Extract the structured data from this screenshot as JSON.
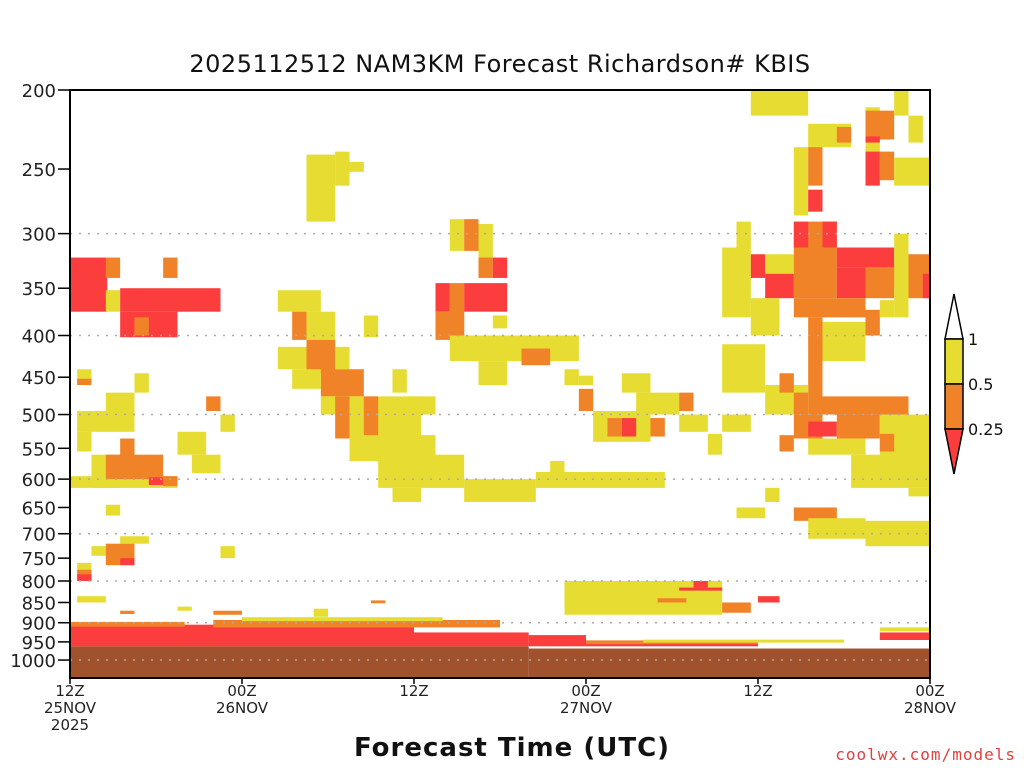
{
  "chart_data": {
    "type": "heatmap",
    "title": "2025112512 NAM3KM Forecast Richardson# KBIS",
    "xlabel": "Forecast Time (UTC)",
    "ylabel": "",
    "credit": "coolwx.com/models",
    "x_unit": "forecast hour",
    "xlim": [
      0,
      60
    ],
    "ylim_hpa": [
      200,
      1052
    ],
    "y_scale": "log",
    "y_ticks": [
      200,
      250,
      300,
      350,
      400,
      450,
      500,
      550,
      600,
      650,
      700,
      750,
      800,
      850,
      900,
      950,
      1000
    ],
    "gridlines_hpa": [
      300,
      400,
      500,
      600,
      700,
      800,
      900,
      1000
    ],
    "x_ticks": [
      {
        "hour": 0,
        "time": "12Z",
        "date": "25NOV",
        "year": "2025"
      },
      {
        "hour": 12,
        "time": "00Z",
        "date": "26NOV"
      },
      {
        "hour": 24,
        "time": "12Z"
      },
      {
        "hour": 36,
        "time": "00Z",
        "date": "27NOV"
      },
      {
        "hour": 48,
        "time": "12Z"
      },
      {
        "hour": 60,
        "time": "00Z",
        "date": "28NOV"
      }
    ],
    "legend": {
      "placement": "right",
      "labels": [
        "1",
        "0.5",
        "0.25"
      ],
      "categories": {
        "y": {
          "range": "0.5-1",
          "color": "#e6dc32"
        },
        "o": {
          "range": "0.25-0.5",
          "color": "#f08228"
        },
        "r": {
          "range": "<0.25",
          "color": "#fc3d3d"
        },
        "g": {
          "range": "below ground",
          "color": "#a0522d"
        }
      }
    },
    "cells": [
      [
        0,
        2.6,
        321,
        374,
        "r"
      ],
      [
        2.5,
        3.5,
        321,
        340,
        "o"
      ],
      [
        6.5,
        7.5,
        321,
        340,
        "o"
      ],
      [
        2.5,
        3.5,
        352,
        374,
        "y"
      ],
      [
        3.5,
        10.5,
        350,
        374,
        "r"
      ],
      [
        3.5,
        7.5,
        374,
        402,
        "r"
      ],
      [
        4.5,
        5.5,
        380,
        400,
        "o"
      ],
      [
        0.5,
        1.5,
        440,
        458,
        "y"
      ],
      [
        0.5,
        1.5,
        452,
        460,
        "o"
      ],
      [
        4.5,
        5.5,
        445,
        470,
        "y"
      ],
      [
        2.5,
        4.5,
        470,
        500,
        "y"
      ],
      [
        0.5,
        4.5,
        495,
        525,
        "y"
      ],
      [
        0.5,
        1.5,
        525,
        555,
        "y"
      ],
      [
        7.5,
        9.5,
        525,
        560,
        "y"
      ],
      [
        8.5,
        10.5,
        560,
        590,
        "y"
      ],
      [
        9.5,
        10.5,
        475,
        495,
        "o"
      ],
      [
        10.5,
        11.5,
        500,
        525,
        "y"
      ],
      [
        0,
        7.5,
        595,
        615,
        "y"
      ],
      [
        1.5,
        3.5,
        560,
        615,
        "y"
      ],
      [
        2.5,
        6.5,
        560,
        600,
        "o"
      ],
      [
        3.5,
        4.5,
        535,
        575,
        "o"
      ],
      [
        5.5,
        6.5,
        597,
        610,
        "r"
      ],
      [
        6.5,
        7.5,
        595,
        612,
        "o"
      ],
      [
        2.5,
        3.5,
        645,
        665,
        "y"
      ],
      [
        3.5,
        5.5,
        705,
        720,
        "y"
      ],
      [
        1.5,
        2.5,
        725,
        745,
        "y"
      ],
      [
        2.5,
        4.5,
        720,
        765,
        "o"
      ],
      [
        3.5,
        4.5,
        750,
        765,
        "r"
      ],
      [
        10.5,
        11.5,
        725,
        750,
        "y"
      ],
      [
        0.5,
        1.5,
        760,
        780,
        "y"
      ],
      [
        0.5,
        1.5,
        775,
        800,
        "o"
      ],
      [
        0.5,
        1.5,
        785,
        800,
        "r"
      ],
      [
        0.5,
        2.5,
        835,
        850,
        "y"
      ],
      [
        3.5,
        4.5,
        870,
        878,
        "o"
      ],
      [
        7.5,
        8.5,
        860,
        870,
        "y"
      ],
      [
        10,
        12,
        870,
        880,
        "o"
      ],
      [
        17,
        18,
        865,
        885,
        "y"
      ],
      [
        21,
        22,
        845,
        852,
        "o"
      ],
      [
        16.5,
        18.5,
        240,
        290,
        "y"
      ],
      [
        18.5,
        19.5,
        238,
        262,
        "y"
      ],
      [
        19.5,
        20.5,
        245,
        252,
        "y"
      ],
      [
        14.5,
        17.5,
        352,
        374,
        "y"
      ],
      [
        15.5,
        16.5,
        374,
        405,
        "o"
      ],
      [
        16.5,
        18.5,
        374,
        405,
        "y"
      ],
      [
        14.5,
        16.5,
        413,
        440,
        "y"
      ],
      [
        16.5,
        18.5,
        405,
        445,
        "o"
      ],
      [
        18.5,
        19.5,
        413,
        440,
        "y"
      ],
      [
        17.5,
        20.5,
        440,
        475,
        "o"
      ],
      [
        15.5,
        17.5,
        440,
        465,
        "y"
      ],
      [
        20.5,
        21.5,
        378,
        402,
        "y"
      ],
      [
        17.5,
        19.5,
        475,
        500,
        "y"
      ],
      [
        18.5,
        19.5,
        475,
        535,
        "o"
      ],
      [
        19.5,
        24.5,
        475,
        555,
        "y"
      ],
      [
        20.5,
        21.5,
        475,
        532,
        "o"
      ],
      [
        23.5,
        25.5,
        475,
        500,
        "y"
      ],
      [
        22.5,
        23.5,
        440,
        470,
        "y"
      ],
      [
        19.5,
        25.5,
        530,
        570,
        "y"
      ],
      [
        21.5,
        27.5,
        560,
        615,
        "y"
      ],
      [
        22.5,
        24.5,
        615,
        640,
        "y"
      ],
      [
        27.5,
        32.5,
        600,
        640,
        "y"
      ],
      [
        26.5,
        27.5,
        288,
        315,
        "y"
      ],
      [
        27.5,
        28.5,
        288,
        315,
        "o"
      ],
      [
        28.5,
        29.5,
        292,
        322,
        "y"
      ],
      [
        28.5,
        29.5,
        321,
        340,
        "o"
      ],
      [
        29.5,
        30.5,
        321,
        340,
        "r"
      ],
      [
        25.5,
        26.5,
        345,
        374,
        "r"
      ],
      [
        26.5,
        27.5,
        345,
        405,
        "o"
      ],
      [
        27.5,
        30.5,
        345,
        374,
        "r"
      ],
      [
        25.5,
        27.5,
        374,
        405,
        "o"
      ],
      [
        29.5,
        30.5,
        378,
        392,
        "y"
      ],
      [
        26.5,
        35.5,
        400,
        430,
        "y"
      ],
      [
        28.5,
        30.5,
        430,
        460,
        "y"
      ],
      [
        31.5,
        33.5,
        415,
        435,
        "o"
      ],
      [
        32.5,
        41.5,
        588,
        615,
        "y"
      ],
      [
        33.5,
        34.5,
        570,
        590,
        "y"
      ],
      [
        34.5,
        35.5,
        440,
        460,
        "y"
      ],
      [
        35.5,
        36.5,
        448,
        460,
        "y"
      ],
      [
        35.5,
        36.5,
        465,
        495,
        "o"
      ],
      [
        36.5,
        40.5,
        495,
        540,
        "y"
      ],
      [
        37.5,
        38.5,
        505,
        532,
        "o"
      ],
      [
        38.5,
        39.5,
        505,
        532,
        "r"
      ],
      [
        40.5,
        41.5,
        505,
        532,
        "o"
      ],
      [
        38.5,
        40.5,
        445,
        470,
        "y"
      ],
      [
        39.5,
        42.5,
        470,
        500,
        "y"
      ],
      [
        42.5,
        43.5,
        470,
        495,
        "o"
      ],
      [
        42.5,
        44.5,
        500,
        525,
        "y"
      ],
      [
        44.5,
        45.5,
        528,
        560,
        "y"
      ],
      [
        45.5,
        47.5,
        500,
        525,
        "y"
      ],
      [
        34.5,
        45.5,
        800,
        880,
        "y"
      ],
      [
        43.5,
        44.5,
        800,
        815,
        "r"
      ],
      [
        42.5,
        45.5,
        815,
        822,
        "r"
      ],
      [
        45.5,
        47.5,
        850,
        875,
        "o"
      ],
      [
        41,
        43,
        840,
        850,
        "o"
      ],
      [
        48,
        49.5,
        835,
        850,
        "r"
      ],
      [
        47.5,
        51.5,
        200,
        215,
        "y"
      ],
      [
        51.5,
        54.5,
        220,
        235,
        "y"
      ],
      [
        53.5,
        54.5,
        222,
        232,
        "o"
      ],
      [
        50.5,
        51.5,
        235,
        285,
        "y"
      ],
      [
        51.5,
        52.5,
        235,
        262,
        "o"
      ],
      [
        51.5,
        52.5,
        265,
        282,
        "r"
      ],
      [
        55.5,
        56.5,
        210,
        240,
        "y"
      ],
      [
        55.5,
        57.5,
        212,
        230,
        "o"
      ],
      [
        55.5,
        56.5,
        228,
        232,
        "r"
      ],
      [
        55.5,
        56.5,
        238,
        262,
        "r"
      ],
      [
        56.5,
        57.5,
        238,
        258,
        "o"
      ],
      [
        57.5,
        60,
        242,
        262,
        "y"
      ],
      [
        57.5,
        58.5,
        200,
        215,
        "y"
      ],
      [
        58.5,
        59.5,
        215,
        232,
        "y"
      ],
      [
        45.5,
        47.5,
        312,
        380,
        "y"
      ],
      [
        46.5,
        47.5,
        290,
        312,
        "y"
      ],
      [
        47.5,
        48.5,
        318,
        340,
        "r"
      ],
      [
        48.5,
        50.5,
        318,
        336,
        "y"
      ],
      [
        48.5,
        50.5,
        336,
        360,
        "r"
      ],
      [
        50.5,
        53.5,
        290,
        360,
        "o"
      ],
      [
        50.5,
        51.5,
        290,
        312,
        "r"
      ],
      [
        52.5,
        53.5,
        290,
        312,
        "r"
      ],
      [
        53.5,
        57.5,
        312,
        330,
        "r"
      ],
      [
        53.5,
        55.5,
        330,
        360,
        "r"
      ],
      [
        55.5,
        57.5,
        330,
        360,
        "o"
      ],
      [
        57.5,
        58.5,
        330,
        350,
        "r"
      ],
      [
        57.5,
        58.5,
        300,
        380,
        "y"
      ],
      [
        58.5,
        60,
        318,
        360,
        "o"
      ],
      [
        59.5,
        60,
        336,
        360,
        "r"
      ],
      [
        50.5,
        55.5,
        360,
        380,
        "o"
      ],
      [
        47.5,
        49.5,
        360,
        400,
        "y"
      ],
      [
        51.5,
        52.5,
        380,
        500,
        "o"
      ],
      [
        52.5,
        55.5,
        385,
        430,
        "y"
      ],
      [
        55.5,
        56.5,
        372,
        400,
        "o"
      ],
      [
        56.5,
        57.5,
        362,
        380,
        "y"
      ],
      [
        45.5,
        48.5,
        410,
        470,
        "y"
      ],
      [
        48.5,
        51.5,
        460,
        500,
        "y"
      ],
      [
        49.5,
        50.5,
        445,
        470,
        "o"
      ],
      [
        50.5,
        51.5,
        470,
        500,
        "o"
      ],
      [
        50.5,
        52.5,
        500,
        535,
        "o"
      ],
      [
        51.5,
        53.5,
        510,
        532,
        "r"
      ],
      [
        52.5,
        58.5,
        475,
        500,
        "o"
      ],
      [
        53.5,
        56.5,
        500,
        535,
        "o"
      ],
      [
        56.5,
        60,
        500,
        570,
        "y"
      ],
      [
        56.5,
        57.5,
        528,
        555,
        "o"
      ],
      [
        51.5,
        55.5,
        535,
        560,
        "y"
      ],
      [
        49.5,
        50.5,
        530,
        555,
        "o"
      ],
      [
        54.5,
        60,
        560,
        615,
        "y"
      ],
      [
        58.5,
        60,
        615,
        630,
        "y"
      ],
      [
        48.5,
        49.5,
        615,
        640,
        "y"
      ],
      [
        46.5,
        48.5,
        650,
        670,
        "y"
      ],
      [
        50.5,
        53.5,
        650,
        675,
        "o"
      ],
      [
        51.5,
        55.5,
        670,
        710,
        "y"
      ],
      [
        55.5,
        60,
        675,
        725,
        "y"
      ],
      [
        0,
        24,
        905,
        962,
        "r"
      ],
      [
        24,
        32,
        925,
        962,
        "r"
      ],
      [
        10,
        30,
        893,
        912,
        "o"
      ],
      [
        12,
        26,
        886,
        896,
        "y"
      ],
      [
        0,
        8,
        898,
        910,
        "o"
      ],
      [
        32,
        36,
        932,
        962,
        "r"
      ],
      [
        36,
        48,
        946,
        958,
        "o"
      ],
      [
        40,
        54,
        944,
        952,
        "y"
      ],
      [
        36,
        48,
        956,
        962,
        "r"
      ],
      [
        56.5,
        60,
        925,
        945,
        "r"
      ],
      [
        56.5,
        60,
        912,
        922,
        "y"
      ],
      [
        0,
        32,
        962,
        1052,
        "g"
      ],
      [
        32,
        60,
        968,
        1052,
        "g"
      ]
    ]
  }
}
